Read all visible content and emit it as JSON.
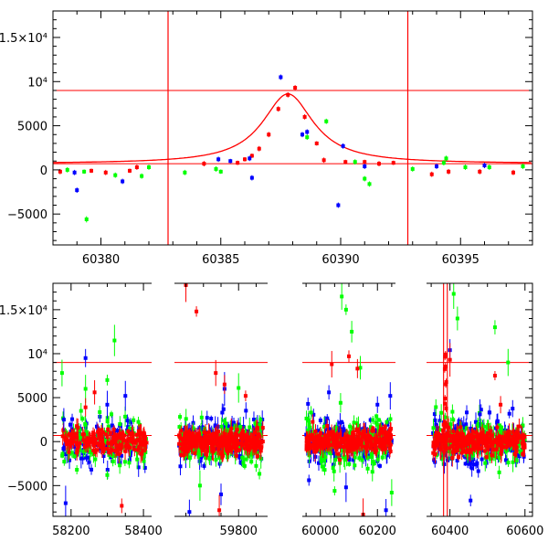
{
  "chart_data": [
    {
      "type": "scatter",
      "title": "",
      "xlabel": "",
      "ylabel": "",
      "xlim": [
        60378,
        60398
      ],
      "ylim": [
        -8500,
        18000
      ],
      "x_ticks": [
        "60380",
        "60385",
        "60390",
        "60395"
      ],
      "y_ticks": [
        "1.5×10⁴",
        "10⁴",
        "5000",
        "0",
        "−5000"
      ],
      "y_tick_values": [
        15000,
        10000,
        5000,
        0,
        -5000
      ],
      "hlines": [
        9000,
        700
      ],
      "vlines": [
        60382.8,
        60392.8
      ],
      "model_curve": {
        "type": "lorentzian",
        "center": 60387.8,
        "peak": 8600,
        "gamma": 1.3,
        "baseline": 700,
        "color": "#ff0000"
      },
      "series": [
        {
          "color": "#ff0000",
          "points": [
            [
              60378.3,
              -200,
              300
            ],
            [
              60379.6,
              -100,
              250
            ],
            [
              60380.2,
              -300,
              300
            ],
            [
              60381.2,
              -100,
              250
            ],
            [
              60381.5,
              300,
              300
            ],
            [
              60384.3,
              700,
              300
            ],
            [
              60385.7,
              800,
              250
            ],
            [
              60386.0,
              1200,
              250
            ],
            [
              60386.3,
              1600,
              250
            ],
            [
              60386.6,
              2400,
              300
            ],
            [
              60387.0,
              4000,
              300
            ],
            [
              60387.4,
              6900,
              300
            ],
            [
              60387.8,
              8500,
              300
            ],
            [
              60388.1,
              9300,
              300
            ],
            [
              60388.5,
              6000,
              300
            ],
            [
              60389.0,
              3000,
              250
            ],
            [
              60389.3,
              1100,
              300
            ],
            [
              60390.2,
              900,
              250
            ],
            [
              60391.0,
              900,
              250
            ],
            [
              60391.6,
              700,
              300
            ],
            [
              60392.2,
              800,
              250
            ],
            [
              60393.8,
              -500,
              300
            ],
            [
              60394.5,
              -200,
              300
            ],
            [
              60395.8,
              -200,
              300
            ],
            [
              60397.2,
              -300,
              300
            ]
          ]
        },
        {
          "color": "#00ff00",
          "points": [
            [
              60378.6,
              0,
              300
            ],
            [
              60379.3,
              -200,
              250
            ],
            [
              60379.4,
              -5600,
              350
            ],
            [
              60380.6,
              -600,
              300
            ],
            [
              60381.7,
              -700,
              300
            ],
            [
              60382.0,
              300,
              300
            ],
            [
              60383.5,
              -300,
              300
            ],
            [
              60384.8,
              100,
              300
            ],
            [
              60385.0,
              -200,
              250
            ],
            [
              60388.6,
              3700,
              300
            ],
            [
              60389.4,
              5500,
              300
            ],
            [
              60390.6,
              900,
              300
            ],
            [
              60391.0,
              -1000,
              300
            ],
            [
              60391.2,
              -1600,
              300
            ],
            [
              60393.0,
              100,
              300
            ],
            [
              60394.3,
              800,
              300
            ],
            [
              60394.4,
              1300,
              300
            ],
            [
              60395.2,
              300,
              300
            ],
            [
              60396.2,
              300,
              300
            ],
            [
              60397.6,
              400,
              300
            ]
          ]
        },
        {
          "color": "#0000ff",
          "points": [
            [
              60378.9,
              -300,
              300
            ],
            [
              60379.0,
              -2300,
              300
            ],
            [
              60380.9,
              -1300,
              300
            ],
            [
              60384.9,
              1200,
              300
            ],
            [
              60385.4,
              1000,
              250
            ],
            [
              60386.2,
              1300,
              300
            ],
            [
              60386.3,
              -900,
              300
            ],
            [
              60387.5,
              10500,
              300
            ],
            [
              60388.4,
              4000,
              300
            ],
            [
              60388.6,
              4300,
              300
            ],
            [
              60389.9,
              -4000,
              300
            ],
            [
              60390.1,
              2700,
              300
            ],
            [
              60391.0,
              400,
              300
            ],
            [
              60394.0,
              400,
              300
            ],
            [
              60396.0,
              500,
              300
            ]
          ]
        }
      ]
    },
    {
      "type": "scatter",
      "title": "",
      "xlabel": "",
      "ylabel": "",
      "broken_x_axis": true,
      "ylim": [
        -8500,
        18000
      ],
      "y_ticks": [
        "1.5×10⁴",
        "10⁴",
        "5000",
        "0",
        "−5000"
      ],
      "y_tick_values": [
        15000,
        10000,
        5000,
        0,
        -5000
      ],
      "hlines": [
        9000,
        700
      ],
      "segments": [
        {
          "xlim": [
            58150,
            58420
          ],
          "x_ticks": [
            "58200",
            "58400"
          ],
          "x_tick_values": [
            58200,
            58400
          ]
        },
        {
          "xlim": [
            59620,
            59880
          ],
          "x_ticks": [
            "59800"
          ],
          "x_tick_values": [
            59800
          ]
        },
        {
          "xlim": [
            59940,
            60260
          ],
          "x_ticks": [
            "60000",
            "60200"
          ],
          "x_tick_values": [
            60000,
            60200
          ]
        },
        {
          "xlim": [
            60340,
            60620
          ],
          "x_ticks": [
            "60400",
            "60600"
          ],
          "x_tick_values": [
            60400,
            60600
          ]
        }
      ],
      "observing_windows": [
        [
          58175,
          58410
        ],
        [
          59630,
          59870
        ],
        [
          59950,
          60250
        ],
        [
          60355,
          60600
        ]
      ],
      "band_scatter": {
        "mean": 0,
        "sigma": 1200
      },
      "flare_vlines": [
        60383,
        60393
      ],
      "outliers": {
        "red": [
          [
            59650,
            17800
          ],
          [
            59680,
            14800
          ],
          [
            59735,
            7800
          ],
          [
            59760,
            6500
          ],
          [
            59820,
            5200
          ],
          [
            60040,
            8800
          ],
          [
            60100,
            9700
          ],
          [
            60130,
            8300
          ],
          [
            60400,
            9300
          ],
          [
            60520,
            7500
          ],
          [
            60535,
            4200
          ],
          [
            58340,
            -7300
          ],
          [
            58265,
            5600
          ],
          [
            59745,
            -7800
          ],
          [
            60150,
            -8300
          ],
          [
            58240,
            3900
          ]
        ],
        "green": [
          [
            58175,
            7800
          ],
          [
            58320,
            11500
          ],
          [
            58300,
            7000
          ],
          [
            58240,
            6000
          ],
          [
            59800,
            6100
          ],
          [
            60075,
            16500
          ],
          [
            60090,
            15000
          ],
          [
            60110,
            12500
          ],
          [
            60140,
            8400
          ],
          [
            60520,
            13000
          ],
          [
            60555,
            9000
          ],
          [
            60410,
            16800
          ],
          [
            60420,
            14000
          ],
          [
            58300,
            -3800
          ],
          [
            59690,
            -5000
          ],
          [
            60050,
            -5600
          ],
          [
            60250,
            -5800
          ]
        ],
        "blue": [
          [
            58240,
            9500
          ],
          [
            58180,
            2500
          ],
          [
            58300,
            4200
          ],
          [
            58350,
            5200
          ],
          [
            59660,
            -8000
          ],
          [
            59760,
            6000
          ],
          [
            60030,
            5600
          ],
          [
            60090,
            -5200
          ],
          [
            60200,
            4200
          ],
          [
            60245,
            5200
          ],
          [
            60400,
            10400
          ],
          [
            60455,
            -6700
          ],
          [
            60480,
            3100
          ],
          [
            58185,
            -7000
          ],
          [
            59750,
            -6000
          ],
          [
            60230,
            -7800
          ]
        ]
      }
    }
  ]
}
